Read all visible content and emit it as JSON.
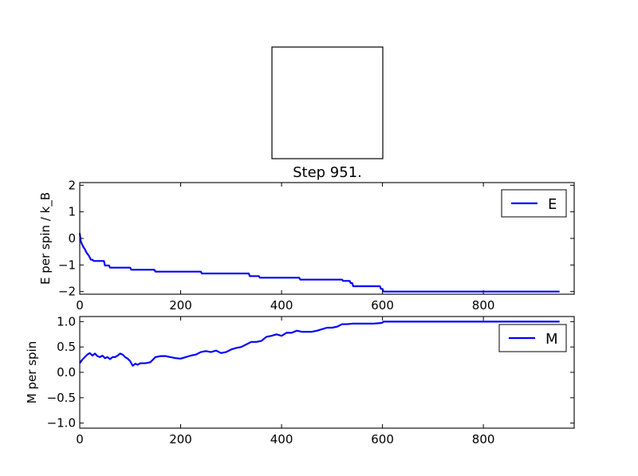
{
  "lattice_panel": {
    "title": "Step 951."
  },
  "colors": {
    "line": "#0000ff",
    "axes": "#000000",
    "background": "#ffffff"
  },
  "chart_data": [
    {
      "type": "line",
      "xlabel": "",
      "ylabel": "E per spin / k_B",
      "xlim": [
        0,
        980
      ],
      "ylim": [
        -2.1,
        2.1
      ],
      "xticks": [
        "0",
        "200",
        "400",
        "600",
        "800"
      ],
      "xtick_values": [
        0,
        200,
        400,
        600,
        800
      ],
      "yticks": [
        "2",
        "1",
        "0",
        "−1",
        "−2"
      ],
      "ytick_values": [
        2,
        1,
        0,
        -1,
        -2
      ],
      "legend": "top-right",
      "grid": false,
      "series": [
        {
          "name": "E",
          "x": [
            0,
            2,
            4,
            6,
            8,
            10,
            12,
            14,
            16,
            18,
            20,
            22,
            25,
            28,
            30,
            40,
            48,
            50,
            58,
            60,
            100,
            102,
            148,
            150,
            240,
            242,
            335,
            337,
            355,
            357,
            435,
            437,
            520,
            522,
            535,
            537,
            540,
            542,
            595,
            597,
            600,
            602,
            951
          ],
          "y": [
            0.2,
            -0.1,
            -0.2,
            -0.28,
            -0.35,
            -0.4,
            -0.48,
            -0.55,
            -0.6,
            -0.65,
            -0.72,
            -0.8,
            -0.8,
            -0.85,
            -0.85,
            -0.85,
            -0.85,
            -1.02,
            -1.02,
            -1.1,
            -1.1,
            -1.18,
            -1.18,
            -1.25,
            -1.25,
            -1.32,
            -1.32,
            -1.42,
            -1.42,
            -1.48,
            -1.48,
            -1.55,
            -1.55,
            -1.6,
            -1.6,
            -1.68,
            -1.68,
            -1.8,
            -1.8,
            -1.9,
            -1.9,
            -2.0,
            -2.0
          ]
        }
      ]
    },
    {
      "type": "line",
      "xlabel": "",
      "ylabel": "M per spin",
      "xlim": [
        0,
        980
      ],
      "ylim": [
        -1.1,
        1.1
      ],
      "xticks": [
        "0",
        "200",
        "400",
        "600",
        "800"
      ],
      "xtick_values": [
        0,
        200,
        400,
        600,
        800
      ],
      "yticks": [
        "1.0",
        "0.5",
        "0.0",
        "−0.5",
        "−1.0"
      ],
      "ytick_values": [
        1.0,
        0.5,
        0.0,
        -0.5,
        -1.0
      ],
      "legend": "top-right",
      "grid": false,
      "series": [
        {
          "name": "M",
          "x": [
            0,
            5,
            10,
            15,
            20,
            25,
            30,
            35,
            40,
            45,
            50,
            55,
            60,
            65,
            70,
            75,
            80,
            85,
            90,
            95,
            100,
            105,
            110,
            115,
            120,
            130,
            140,
            150,
            160,
            170,
            180,
            190,
            200,
            210,
            220,
            230,
            240,
            250,
            260,
            270,
            280,
            290,
            300,
            310,
            320,
            330,
            340,
            350,
            360,
            370,
            380,
            390,
            400,
            410,
            420,
            430,
            440,
            450,
            460,
            470,
            480,
            490,
            500,
            510,
            520,
            530,
            540,
            550,
            560,
            580,
            595,
            600,
            602,
            951
          ],
          "y": [
            0.18,
            0.25,
            0.3,
            0.35,
            0.38,
            0.33,
            0.37,
            0.32,
            0.3,
            0.33,
            0.28,
            0.3,
            0.26,
            0.3,
            0.3,
            0.33,
            0.37,
            0.35,
            0.3,
            0.27,
            0.22,
            0.13,
            0.17,
            0.15,
            0.18,
            0.18,
            0.2,
            0.3,
            0.32,
            0.32,
            0.3,
            0.28,
            0.27,
            0.3,
            0.33,
            0.35,
            0.4,
            0.42,
            0.4,
            0.43,
            0.38,
            0.4,
            0.45,
            0.48,
            0.5,
            0.55,
            0.6,
            0.6,
            0.62,
            0.7,
            0.72,
            0.75,
            0.72,
            0.78,
            0.78,
            0.82,
            0.8,
            0.8,
            0.8,
            0.82,
            0.85,
            0.88,
            0.88,
            0.9,
            0.95,
            0.95,
            0.96,
            0.96,
            0.96,
            0.96,
            0.97,
            0.98,
            1.0,
            1.0
          ]
        }
      ]
    }
  ]
}
